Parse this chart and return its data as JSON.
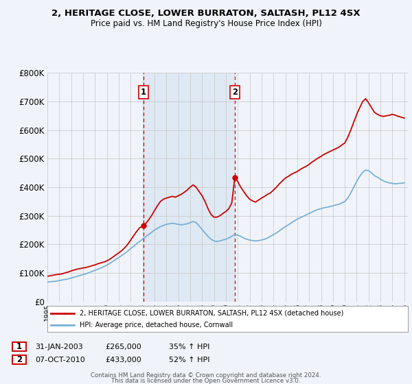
{
  "title_line1": "2, HERITAGE CLOSE, LOWER BURRATON, SALTASH, PL12 4SX",
  "title_line2": "Price paid vs. HM Land Registry's House Price Index (HPI)",
  "legend_label_red": "2, HERITAGE CLOSE, LOWER BURRATON, SALTASH, PL12 4SX (detached house)",
  "legend_label_blue": "HPI: Average price, detached house, Cornwall",
  "footer_line1": "Contains HM Land Registry data © Crown copyright and database right 2024.",
  "footer_line2": "This data is licensed under the Open Government Licence v3.0.",
  "annotation1_date": "31-JAN-2003",
  "annotation1_price": "£265,000",
  "annotation1_hpi": "35% ↑ HPI",
  "annotation2_date": "07-OCT-2010",
  "annotation2_price": "£433,000",
  "annotation2_hpi": "52% ↑ HPI",
  "red_color": "#cc0000",
  "blue_color": "#7ab0d4",
  "shade_color": "#ddeeff",
  "background_color": "#f0f4fa",
  "grid_color": "#cccccc",
  "ylim": [
    0,
    800000
  ],
  "yticks": [
    0,
    100000,
    200000,
    300000,
    400000,
    500000,
    600000,
    700000,
    800000
  ],
  "xlim_start": 1995.0,
  "xlim_end": 2025.3,
  "xtick_years": [
    1995,
    1996,
    1997,
    1998,
    1999,
    2000,
    2001,
    2002,
    2003,
    2004,
    2005,
    2006,
    2007,
    2008,
    2009,
    2010,
    2011,
    2012,
    2013,
    2014,
    2015,
    2016,
    2017,
    2018,
    2019,
    2020,
    2021,
    2022,
    2023,
    2024,
    2025
  ],
  "purchase1_x": 2003.08,
  "purchase1_y": 265000,
  "purchase2_x": 2010.75,
  "purchase2_y": 433000,
  "red_x": [
    1995.0,
    1995.25,
    1995.5,
    1995.75,
    1996.0,
    1996.25,
    1996.5,
    1996.75,
    1997.0,
    1997.25,
    1997.5,
    1997.75,
    1998.0,
    1998.25,
    1998.5,
    1998.75,
    1999.0,
    1999.25,
    1999.5,
    1999.75,
    2000.0,
    2000.25,
    2000.5,
    2000.75,
    2001.0,
    2001.25,
    2001.5,
    2001.75,
    2002.0,
    2002.25,
    2002.5,
    2002.75,
    2003.08,
    2003.25,
    2003.5,
    2003.75,
    2004.0,
    2004.25,
    2004.5,
    2004.75,
    2005.0,
    2005.25,
    2005.5,
    2005.75,
    2006.0,
    2006.25,
    2006.5,
    2006.75,
    2007.0,
    2007.25,
    2007.5,
    2007.75,
    2008.0,
    2008.25,
    2008.5,
    2008.75,
    2009.0,
    2009.25,
    2009.5,
    2009.75,
    2010.0,
    2010.25,
    2010.5,
    2010.75,
    2011.0,
    2011.25,
    2011.5,
    2011.75,
    2012.0,
    2012.25,
    2012.5,
    2012.75,
    2013.0,
    2013.25,
    2013.5,
    2013.75,
    2014.0,
    2014.25,
    2014.5,
    2014.75,
    2015.0,
    2015.25,
    2015.5,
    2015.75,
    2016.0,
    2016.25,
    2016.5,
    2016.75,
    2017.0,
    2017.25,
    2017.5,
    2017.75,
    2018.0,
    2018.25,
    2018.5,
    2018.75,
    2019.0,
    2019.25,
    2019.5,
    2019.75,
    2020.0,
    2020.25,
    2020.5,
    2020.75,
    2021.0,
    2021.25,
    2021.5,
    2021.75,
    2022.0,
    2022.25,
    2022.5,
    2022.75,
    2023.0,
    2023.25,
    2023.5,
    2023.75,
    2024.0,
    2024.25,
    2024.5,
    2024.75,
    2025.0
  ],
  "red_y": [
    88000,
    90000,
    92000,
    94000,
    95000,
    97000,
    100000,
    103000,
    107000,
    110000,
    113000,
    115000,
    117000,
    119000,
    122000,
    125000,
    128000,
    132000,
    135000,
    138000,
    142000,
    148000,
    155000,
    163000,
    170000,
    178000,
    188000,
    200000,
    215000,
    230000,
    245000,
    258000,
    265000,
    272000,
    285000,
    300000,
    318000,
    335000,
    350000,
    358000,
    362000,
    365000,
    368000,
    365000,
    370000,
    375000,
    382000,
    390000,
    400000,
    408000,
    400000,
    385000,
    370000,
    350000,
    325000,
    305000,
    295000,
    295000,
    300000,
    308000,
    315000,
    325000,
    345000,
    433000,
    420000,
    400000,
    385000,
    370000,
    358000,
    352000,
    348000,
    355000,
    362000,
    368000,
    375000,
    380000,
    390000,
    400000,
    412000,
    422000,
    432000,
    438000,
    445000,
    450000,
    455000,
    462000,
    468000,
    473000,
    480000,
    488000,
    495000,
    502000,
    508000,
    515000,
    520000,
    525000,
    530000,
    535000,
    540000,
    548000,
    555000,
    575000,
    600000,
    628000,
    655000,
    678000,
    700000,
    710000,
    695000,
    678000,
    662000,
    655000,
    650000,
    648000,
    650000,
    652000,
    655000,
    652000,
    648000,
    645000,
    642000
  ],
  "blue_x": [
    1995.0,
    1995.25,
    1995.5,
    1995.75,
    1996.0,
    1996.25,
    1996.5,
    1996.75,
    1997.0,
    1997.25,
    1997.5,
    1997.75,
    1998.0,
    1998.25,
    1998.5,
    1998.75,
    1999.0,
    1999.25,
    1999.5,
    1999.75,
    2000.0,
    2000.25,
    2000.5,
    2000.75,
    2001.0,
    2001.25,
    2001.5,
    2001.75,
    2002.0,
    2002.25,
    2002.5,
    2002.75,
    2003.0,
    2003.25,
    2003.5,
    2003.75,
    2004.0,
    2004.25,
    2004.5,
    2004.75,
    2005.0,
    2005.25,
    2005.5,
    2005.75,
    2006.0,
    2006.25,
    2006.5,
    2006.75,
    2007.0,
    2007.25,
    2007.5,
    2007.75,
    2008.0,
    2008.25,
    2008.5,
    2008.75,
    2009.0,
    2009.25,
    2009.5,
    2009.75,
    2010.0,
    2010.25,
    2010.5,
    2010.75,
    2011.0,
    2011.25,
    2011.5,
    2011.75,
    2012.0,
    2012.25,
    2012.5,
    2012.75,
    2013.0,
    2013.25,
    2013.5,
    2013.75,
    2014.0,
    2014.25,
    2014.5,
    2014.75,
    2015.0,
    2015.25,
    2015.5,
    2015.75,
    2016.0,
    2016.25,
    2016.5,
    2016.75,
    2017.0,
    2017.25,
    2017.5,
    2017.75,
    2018.0,
    2018.25,
    2018.5,
    2018.75,
    2019.0,
    2019.25,
    2019.5,
    2019.75,
    2020.0,
    2020.25,
    2020.5,
    2020.75,
    2021.0,
    2021.25,
    2021.5,
    2021.75,
    2022.0,
    2022.25,
    2022.5,
    2022.75,
    2023.0,
    2023.25,
    2023.5,
    2023.75,
    2024.0,
    2024.25,
    2024.5,
    2024.75,
    2025.0
  ],
  "blue_y": [
    68000,
    69000,
    70000,
    71000,
    73000,
    75000,
    77000,
    79000,
    82000,
    85000,
    88000,
    91000,
    94000,
    97000,
    101000,
    105000,
    109000,
    113000,
    117000,
    122000,
    127000,
    133000,
    140000,
    147000,
    154000,
    161000,
    168000,
    176000,
    185000,
    193000,
    202000,
    210000,
    218000,
    226000,
    234000,
    242000,
    250000,
    256000,
    262000,
    266000,
    270000,
    272000,
    274000,
    272000,
    270000,
    268000,
    270000,
    272000,
    276000,
    280000,
    276000,
    265000,
    252000,
    240000,
    228000,
    218000,
    212000,
    210000,
    212000,
    215000,
    218000,
    222000,
    228000,
    235000,
    232000,
    228000,
    222000,
    218000,
    215000,
    213000,
    212000,
    213000,
    215000,
    218000,
    222000,
    228000,
    234000,
    240000,
    247000,
    255000,
    262000,
    268000,
    275000,
    282000,
    288000,
    293000,
    298000,
    303000,
    308000,
    313000,
    318000,
    322000,
    325000,
    328000,
    330000,
    332000,
    335000,
    338000,
    340000,
    345000,
    350000,
    362000,
    380000,
    400000,
    420000,
    438000,
    452000,
    460000,
    458000,
    450000,
    440000,
    435000,
    428000,
    422000,
    418000,
    415000,
    413000,
    412000,
    413000,
    414000,
    415000
  ]
}
